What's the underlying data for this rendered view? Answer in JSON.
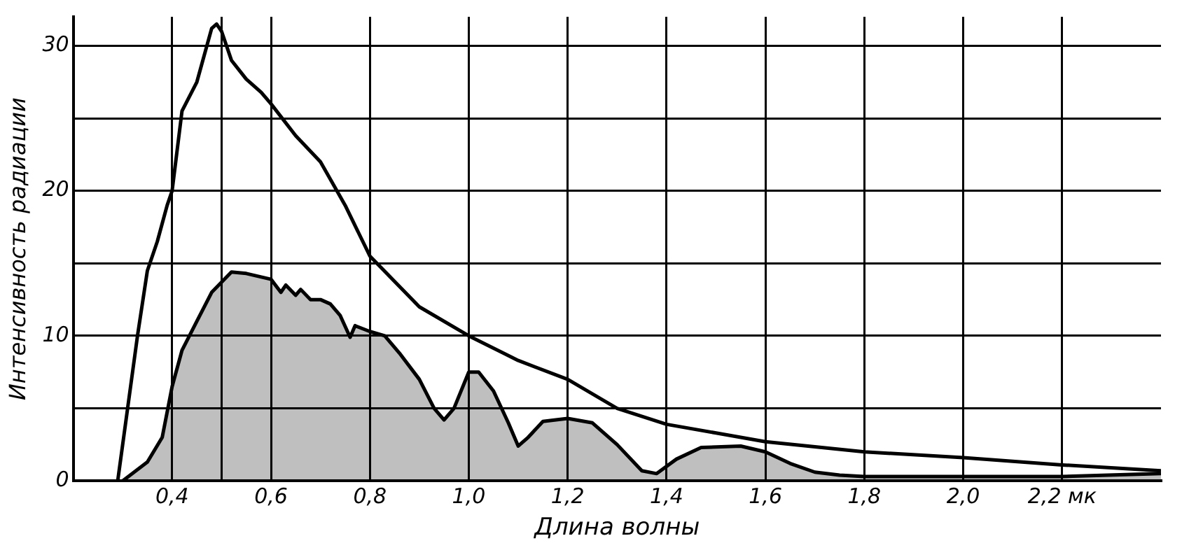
{
  "chart_data": {
    "type": "line",
    "xlabel": "Длина волны",
    "ylabel": "Интенсивность радиации",
    "xlim": [
      0.2,
      2.4
    ],
    "ylim": [
      0,
      32
    ],
    "xticks": [
      {
        "value": 0.4,
        "label": "0,4"
      },
      {
        "value": 0.5,
        "label": null
      },
      {
        "value": 0.6,
        "label": "0,6"
      },
      {
        "value": 0.8,
        "label": "0,8"
      },
      {
        "value": 1.0,
        "label": "1,0"
      },
      {
        "value": 1.2,
        "label": "1,2"
      },
      {
        "value": 1.4,
        "label": "1,4"
      },
      {
        "value": 1.6,
        "label": "1,6"
      },
      {
        "value": 1.8,
        "label": "1,8"
      },
      {
        "value": 2.0,
        "label": "2,0"
      },
      {
        "value": 2.2,
        "label": "2,2 мк"
      }
    ],
    "yticks": [
      0,
      {
        "value": 5,
        "label": null
      },
      10,
      {
        "value": 15,
        "label": null
      },
      20,
      {
        "value": 25,
        "label": null
      },
      30
    ],
    "grid": true,
    "marker": "none",
    "series": [
      {
        "color": "#000000",
        "x": [
          0.29,
          0.31,
          0.33,
          0.35,
          0.37,
          0.39,
          0.4,
          0.42,
          0.45,
          0.48,
          0.49,
          0.5,
          0.52,
          0.55,
          0.58,
          0.6,
          0.65,
          0.7,
          0.75,
          0.8,
          0.9,
          1.0,
          1.1,
          1.2,
          1.3,
          1.4,
          1.5,
          1.6,
          1.8,
          2.0,
          2.2,
          2.4
        ],
        "values": [
          0,
          5,
          10,
          14.5,
          16.5,
          19,
          20,
          25.5,
          27.5,
          31.2,
          31.5,
          31,
          29,
          27.7,
          26.8,
          26,
          23.8,
          22,
          19,
          15.5,
          12,
          10,
          8.3,
          7,
          5,
          3.9,
          3.3,
          2.7,
          2,
          1.6,
          1.1,
          0.7
        ]
      },
      {
        "type": "area",
        "color": "#000000",
        "x": [
          0.3,
          0.35,
          0.38,
          0.4,
          0.42,
          0.45,
          0.48,
          0.52,
          0.55,
          0.6,
          0.62,
          0.63,
          0.65,
          0.66,
          0.68,
          0.7,
          0.72,
          0.74,
          0.76,
          0.77,
          0.8,
          0.83,
          0.86,
          0.9,
          0.93,
          0.95,
          0.97,
          1.0,
          1.02,
          1.05,
          1.08,
          1.1,
          1.12,
          1.15,
          1.2,
          1.25,
          1.3,
          1.35,
          1.38,
          1.42,
          1.47,
          1.55,
          1.6,
          1.65,
          1.7,
          1.75,
          1.8,
          2.0,
          2.2,
          2.4
        ],
        "values": [
          0,
          1.3,
          3,
          6.5,
          9,
          11,
          13,
          14.4,
          14.3,
          13.9,
          13,
          13.5,
          12.8,
          13.2,
          12.5,
          12.5,
          12.2,
          11.4,
          9.9,
          10.7,
          10.3,
          10,
          8.8,
          7,
          5,
          4.2,
          5,
          7.5,
          7.5,
          6.2,
          4,
          2.4,
          3,
          4.1,
          4.3,
          4,
          2.5,
          0.7,
          0.5,
          1.5,
          2.3,
          2.4,
          2,
          1.2,
          0.6,
          0.4,
          0.3,
          0.3,
          0.3,
          0.5
        ]
      }
    ]
  }
}
